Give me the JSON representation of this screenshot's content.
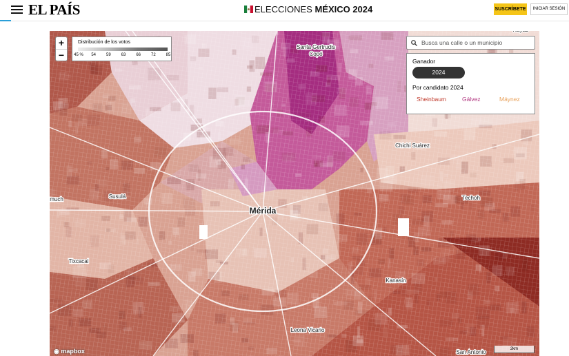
{
  "header": {
    "logo": "EL PAÍS",
    "title_prefix": "ELECCIONES",
    "title_main": "MÉXICO 2024",
    "subscribe": "SUSCRÍBETE",
    "login": "INICIAR SESIÓN"
  },
  "map": {
    "zoom_in": "+",
    "zoom_out": "−",
    "legend": {
      "title": "Distribución de los votos",
      "labels": [
        "45 %",
        "54",
        "59",
        "63",
        "66",
        "72",
        "85"
      ]
    },
    "search_placeholder": "Busca una calle o un municipio",
    "panel": {
      "winner_title": "Ganador",
      "year": "2024",
      "by_candidate_title": "Por candidato 2024",
      "candidates": [
        "Sheinbaum",
        "Gálvez",
        "Máynez"
      ]
    },
    "places": [
      "Santa Gertrudis",
      "Copó",
      "Chichi Suárez",
      "Susulá",
      "Mérida",
      "Techoh",
      "Tixcacal",
      "Kanasín",
      "Leona Vicario",
      "San Antonio",
      "much",
      "Kayab"
    ],
    "attribution": "mapbox",
    "scale": "2km"
  }
}
